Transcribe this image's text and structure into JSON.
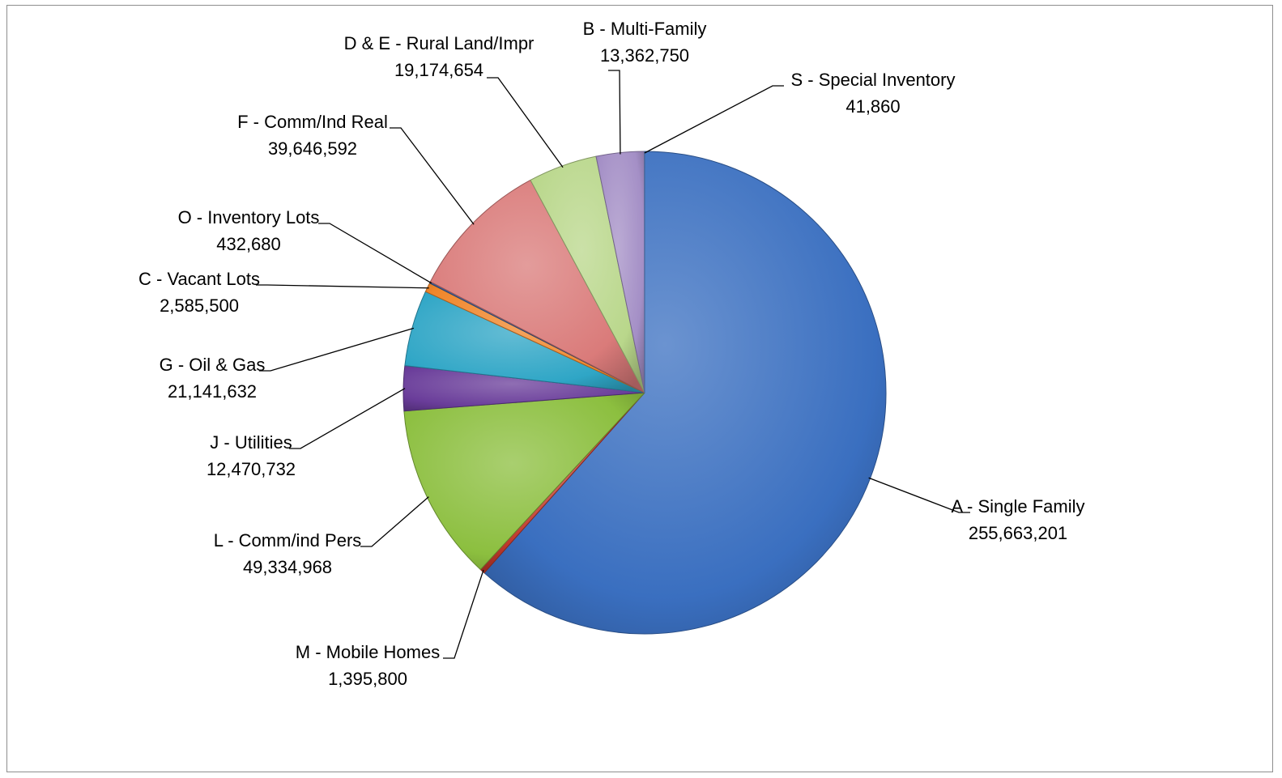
{
  "chart_data": {
    "type": "pie",
    "title": "",
    "start_angle_deg": 0,
    "direction": "clockwise",
    "slices": [
      {
        "label": "A - Single Family",
        "value": 255663201,
        "value_label": "255,663,201",
        "color": "#3a6fc0"
      },
      {
        "label": "M - Mobile Homes",
        "value": 1395800,
        "value_label": "1,395,800",
        "color": "#c0392b"
      },
      {
        "label": "L - Comm/ind Pers",
        "value": 49334968,
        "value_label": "49,334,968",
        "color": "#8cbf3f"
      },
      {
        "label": "J - Utilities",
        "value": 12470732,
        "value_label": "12,470,732",
        "color": "#6a3d9a"
      },
      {
        "label": "G - Oil & Gas",
        "value": 21141632,
        "value_label": "21,141,632",
        "color": "#2fa6c6"
      },
      {
        "label": "C - Vacant Lots",
        "value": 2585500,
        "value_label": "2,585,500",
        "color": "#f0862a"
      },
      {
        "label": "O - Inventory Lots",
        "value": 432680,
        "value_label": "432,680",
        "color": "#3c5e9c"
      },
      {
        "label": "F - Comm/Ind Real",
        "value": 39646592,
        "value_label": "39,646,592",
        "color": "#da7b7a"
      },
      {
        "label": "D & E - Rural Land/Impr",
        "value": 19174654,
        "value_label": "19,174,654",
        "color": "#b9d78b"
      },
      {
        "label": "B - Multi-Family",
        "value": 13362750,
        "value_label": "13,362,750",
        "color": "#a48fc6"
      },
      {
        "label": "S - Special Inventory",
        "value": 41860,
        "value_label": "41,860",
        "color": "#5b8fd6"
      }
    ]
  }
}
